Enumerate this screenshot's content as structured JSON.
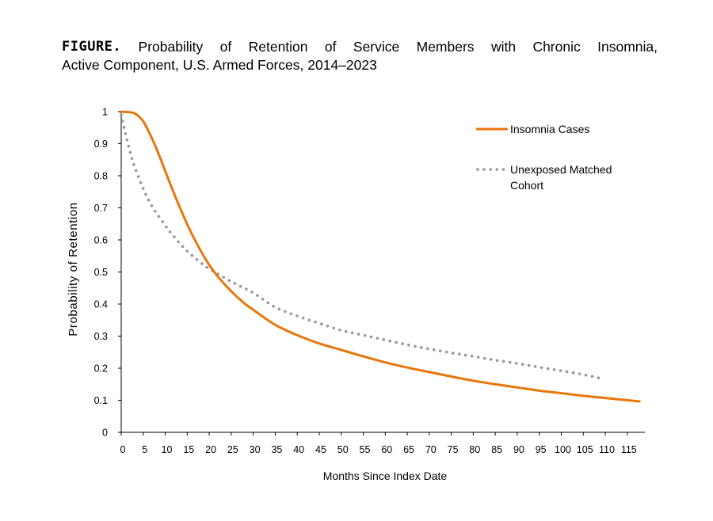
{
  "figure": {
    "label": "FIGURE.",
    "title_line1_words": [
      "Probability",
      "of",
      "Retention",
      "of",
      "Service",
      "Members",
      "with",
      "Chronic",
      "Insomnia,"
    ],
    "title_line2": "Active Component, U.S. Armed Forces, 2014–2023"
  },
  "chart_data": {
    "type": "line",
    "xlabel": "Months Since Index Date",
    "ylabel": "Probability of Retention",
    "xlim": [
      0,
      119
    ],
    "ylim": [
      0,
      1
    ],
    "x_ticks": [
      0,
      5,
      10,
      15,
      20,
      25,
      30,
      35,
      40,
      45,
      50,
      55,
      60,
      65,
      70,
      75,
      80,
      85,
      90,
      95,
      100,
      105,
      110,
      115
    ],
    "y_ticks": [
      0,
      0.1,
      0.2,
      0.3,
      0.4,
      0.5,
      0.6,
      0.7,
      0.8,
      0.9,
      1
    ],
    "y_tick_labels": [
      "0",
      "0.1",
      "0.2",
      "0.3",
      "0.4",
      "0.5",
      "0.6",
      "0.7",
      "0.8",
      "0.9",
      "1"
    ],
    "grid": false,
    "legend_position": "top-right",
    "series": [
      {
        "name": "Insomnia Cases",
        "color": "#e8760a",
        "style": "solid",
        "x": [
          0,
          2,
          3,
          4,
          5,
          6,
          8,
          10,
          12,
          14,
          16,
          18,
          20,
          22,
          25,
          28,
          30,
          35,
          40,
          45,
          50,
          55,
          60,
          65,
          70,
          75,
          80,
          85,
          90,
          95,
          100,
          105,
          110,
          115,
          118
        ],
        "y": [
          1.0,
          0.998,
          0.995,
          0.985,
          0.97,
          0.945,
          0.885,
          0.815,
          0.745,
          0.68,
          0.62,
          0.568,
          0.522,
          0.485,
          0.44,
          0.402,
          0.382,
          0.335,
          0.303,
          0.277,
          0.257,
          0.237,
          0.218,
          0.202,
          0.188,
          0.174,
          0.161,
          0.15,
          0.14,
          0.13,
          0.122,
          0.114,
          0.107,
          0.1,
          0.096
        ]
      },
      {
        "name": "Unexposed Matched Cohort",
        "color": "#999999",
        "style": "dotted",
        "x": [
          0,
          1,
          2,
          3,
          5,
          7,
          10,
          12,
          15,
          18,
          20,
          25,
          30,
          35,
          40,
          45,
          50,
          55,
          60,
          65,
          70,
          75,
          80,
          85,
          90,
          95,
          100,
          105,
          109
        ],
        "y": [
          0.99,
          0.93,
          0.875,
          0.83,
          0.76,
          0.705,
          0.645,
          0.61,
          0.565,
          0.53,
          0.51,
          0.47,
          0.435,
          0.39,
          0.363,
          0.34,
          0.318,
          0.303,
          0.288,
          0.273,
          0.26,
          0.248,
          0.237,
          0.225,
          0.215,
          0.203,
          0.192,
          0.18,
          0.168
        ]
      }
    ]
  }
}
